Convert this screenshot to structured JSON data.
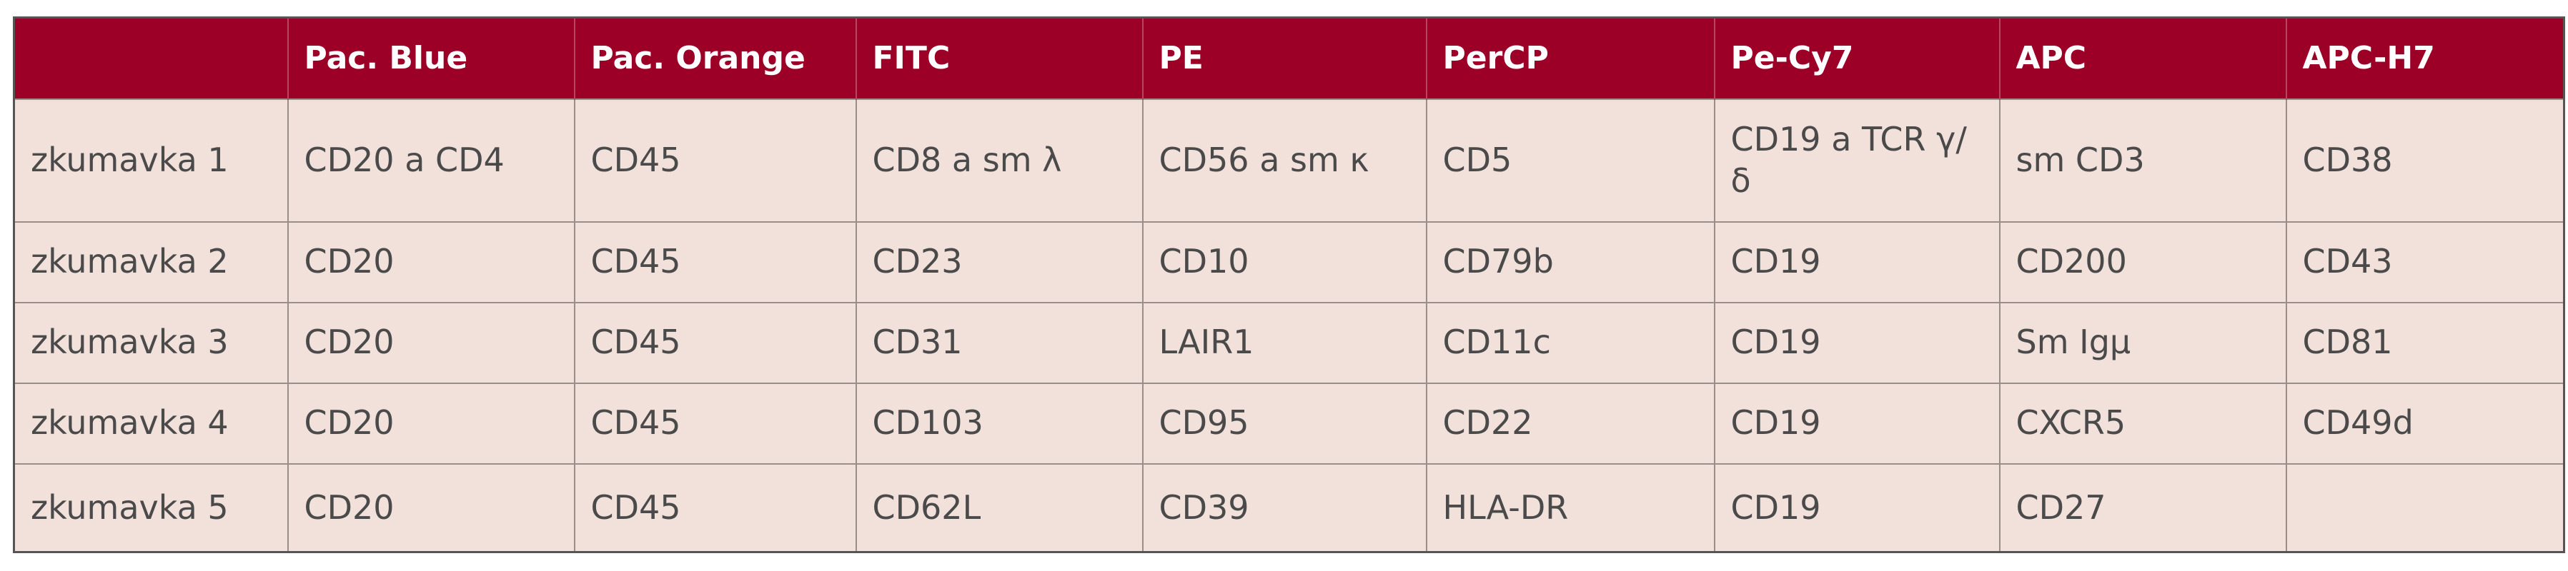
{
  "table": {
    "header": [
      "Pac. Blue",
      "Pac. Orange",
      "FITC",
      "PE",
      "PerCP",
      "Pe-Cy7",
      "APC",
      "APC-H7"
    ],
    "rows": [
      [
        "zkumavka 1",
        "CD20 a CD4",
        "CD45",
        "CD8 a sm λ",
        "CD56 a sm κ",
        "CD5",
        "CD19 a TCR γ/δ",
        "sm CD3",
        "CD38"
      ],
      [
        "zkumavka 2",
        "CD20",
        "CD45",
        "CD23",
        "CD10",
        "CD79b",
        "CD19",
        "CD200",
        "CD43"
      ],
      [
        "zkumavka 3",
        "CD20",
        "CD45",
        "CD31",
        "LAIR1",
        "CD11c",
        "CD19",
        "Sm Igμ",
        "CD81"
      ],
      [
        "zkumavka 4",
        "CD20",
        "CD45",
        "CD103",
        "CD95",
        "CD22",
        "CD19",
        "CXCR5",
        "CD49d"
      ],
      [
        "zkumavka 5",
        "CD20",
        "CD45",
        "CD62L",
        "CD39",
        "HLA-DR",
        "CD19",
        "CD27",
        null
      ]
    ]
  }
}
